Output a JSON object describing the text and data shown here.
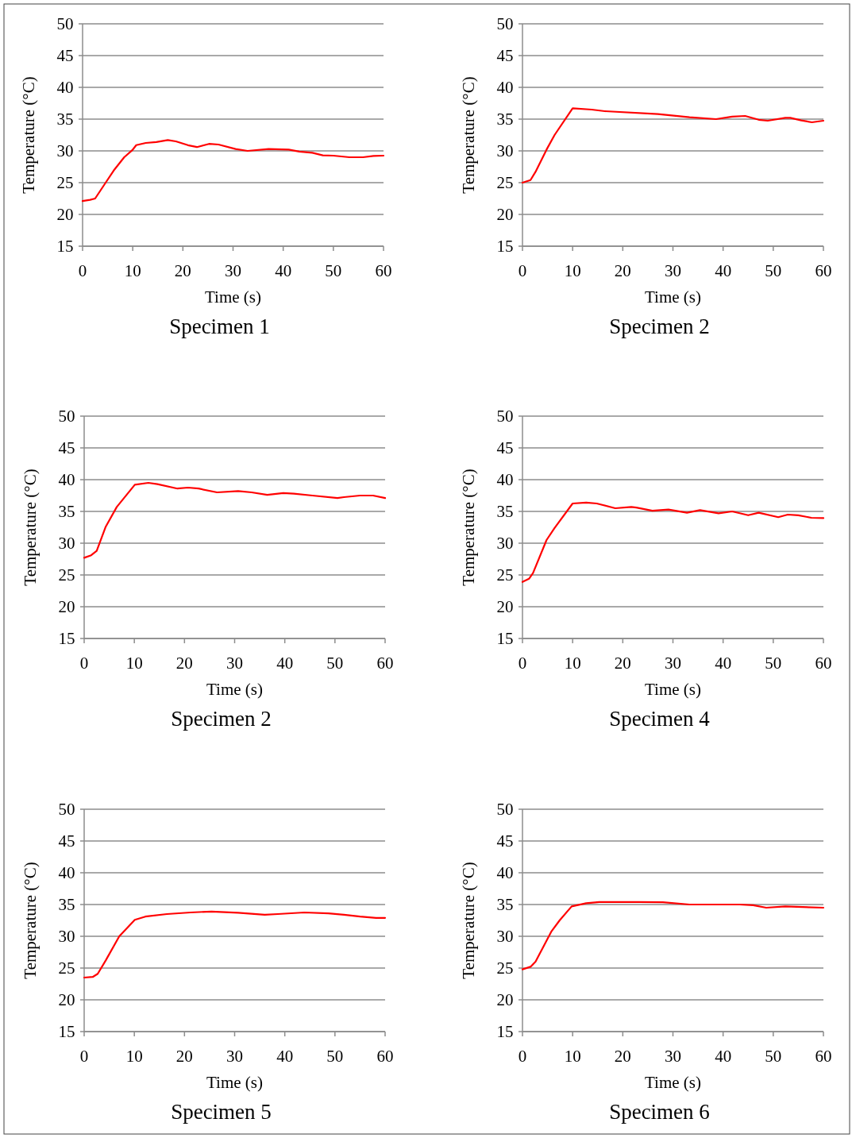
{
  "chart_data": [
    {
      "type": "line",
      "title": "Specimen 1",
      "xlabel": "Time (s)",
      "ylabel": "Temperature (°C)",
      "xlim": [
        0,
        60
      ],
      "ylim": [
        15,
        50
      ],
      "xticks": [
        0,
        10,
        20,
        30,
        40,
        50,
        60
      ],
      "yticks": [
        15,
        20,
        25,
        30,
        35,
        40,
        45,
        50
      ],
      "grid": "y",
      "x": [
        0,
        1.5,
        2.5,
        4.6,
        6.2,
        8.3,
        9.9,
        10.7,
        12.6,
        14.7,
        17,
        18.6,
        21,
        22.8,
        25.2,
        27.1,
        30.5,
        32.9,
        37.1,
        41.1,
        43.2,
        45.8,
        47.9,
        50,
        53.2,
        55.9,
        58,
        60
      ],
      "series": [
        {
          "color": "#ff0000",
          "values": [
            22.1,
            22.3,
            22.5,
            25,
            26.9,
            29,
            30.1,
            30.9,
            31.25,
            31.4,
            31.7,
            31.5,
            30.9,
            30.6,
            31.1,
            31,
            30.3,
            30,
            30.3,
            30.2,
            29.9,
            29.7,
            29.3,
            29.25,
            29,
            29,
            29.2,
            29.25
          ]
        }
      ]
    },
    {
      "type": "line",
      "title": "Specimen 2",
      "xlabel": "Time (s)",
      "ylabel": "Temperature (°C)",
      "xlim": [
        0,
        60
      ],
      "ylim": [
        15,
        50
      ],
      "xticks": [
        0,
        10,
        20,
        30,
        40,
        50,
        60
      ],
      "yticks": [
        15,
        20,
        25,
        30,
        35,
        40,
        45,
        50
      ],
      "grid": "y",
      "x": [
        0,
        1.6,
        2.6,
        4.8,
        6.4,
        10,
        13.8,
        16.4,
        27,
        33.3,
        38.6,
        41.8,
        44.4,
        47.1,
        48.9,
        52.4,
        53.4,
        55.6,
        57.7,
        60
      ],
      "series": [
        {
          "color": "#ff0000",
          "values": [
            25,
            25.4,
            26.7,
            30.2,
            32.5,
            36.7,
            36.5,
            36.25,
            35.8,
            35.3,
            35,
            35.4,
            35.5,
            34.9,
            34.75,
            35.2,
            35.2,
            34.8,
            34.5,
            34.75
          ]
        }
      ]
    },
    {
      "type": "line",
      "title": "Specimen 2",
      "xlabel": "Time (s)",
      "ylabel": "Temperature (°C)",
      "xlim": [
        0,
        60
      ],
      "ylim": [
        15,
        50
      ],
      "xticks": [
        0,
        10,
        20,
        30,
        40,
        50,
        60
      ],
      "yticks": [
        15,
        20,
        25,
        30,
        35,
        40,
        45,
        50
      ],
      "grid": "y",
      "x": [
        0,
        1.4,
        2.5,
        4.3,
        6.5,
        10.1,
        12.8,
        14.6,
        18.6,
        20.7,
        22.8,
        26.5,
        30.7,
        33.4,
        36.5,
        39.7,
        41.8,
        45.5,
        50.5,
        51.8,
        55,
        57.6,
        60
      ],
      "series": [
        {
          "color": "#ff0000",
          "values": [
            27.7,
            28.1,
            28.8,
            32.6,
            35.7,
            39.2,
            39.5,
            39.3,
            38.6,
            38.75,
            38.6,
            38,
            38.2,
            38,
            37.6,
            37.9,
            37.8,
            37.5,
            37.1,
            37.25,
            37.5,
            37.5,
            37.1
          ]
        }
      ]
    },
    {
      "type": "line",
      "title": "Specimen 4",
      "xlabel": "Time (s)",
      "ylabel": "Temperature (°C)",
      "xlim": [
        0,
        60
      ],
      "ylim": [
        15,
        50
      ],
      "xticks": [
        0,
        10,
        20,
        30,
        40,
        50,
        60
      ],
      "yticks": [
        15,
        20,
        25,
        30,
        35,
        40,
        45,
        50
      ],
      "grid": "y",
      "x": [
        0,
        1.3,
        2.1,
        4.8,
        6.4,
        10,
        12.7,
        14.8,
        18.5,
        21.7,
        22.7,
        25.9,
        29.1,
        32.8,
        35.4,
        39.1,
        41.8,
        45,
        47.1,
        51,
        52.9,
        55,
        57.6,
        60
      ],
      "series": [
        {
          "color": "#ff0000",
          "values": [
            23.9,
            24.4,
            25.3,
            30.5,
            32.4,
            36.25,
            36.4,
            36.25,
            35.5,
            35.7,
            35.6,
            35.1,
            35.3,
            34.8,
            35.2,
            34.7,
            35,
            34.4,
            34.8,
            34.1,
            34.5,
            34.4,
            34,
            33.95
          ]
        }
      ]
    },
    {
      "type": "line",
      "title": "Specimen 5",
      "xlabel": "Time (s)",
      "ylabel": "Temperature (°C)",
      "xlim": [
        0,
        60
      ],
      "ylim": [
        15,
        50
      ],
      "xticks": [
        0,
        10,
        20,
        30,
        40,
        50,
        60
      ],
      "yticks": [
        15,
        20,
        25,
        30,
        35,
        40,
        45,
        50
      ],
      "grid": "y",
      "x": [
        0,
        1.7,
        2.7,
        4.3,
        7,
        10.1,
        12.2,
        16.5,
        21.2,
        25.4,
        30.7,
        36,
        38.6,
        43.9,
        48.7,
        51.8,
        55,
        58.2,
        60
      ],
      "series": [
        {
          "color": "#ff0000",
          "values": [
            23.5,
            23.6,
            24.1,
            26.2,
            30,
            32.6,
            33.1,
            33.5,
            33.75,
            33.9,
            33.7,
            33.4,
            33.5,
            33.75,
            33.6,
            33.4,
            33.1,
            32.9,
            32.9
          ]
        }
      ]
    },
    {
      "type": "line",
      "title": "Specimen 6",
      "xlabel": "Time (s)",
      "ylabel": "Temperature (°C)",
      "xlim": [
        0,
        60
      ],
      "ylim": [
        15,
        50
      ],
      "xticks": [
        0,
        10,
        20,
        30,
        40,
        50,
        60
      ],
      "yticks": [
        15,
        20,
        25,
        30,
        35,
        40,
        45,
        50
      ],
      "grid": "y",
      "x": [
        0,
        1.6,
        2.6,
        5.8,
        7.4,
        9.8,
        12.7,
        15.3,
        23.2,
        28,
        33.3,
        43.3,
        46,
        48.6,
        52.4,
        60
      ],
      "series": [
        {
          "color": "#ff0000",
          "values": [
            24.8,
            25.2,
            26,
            30.8,
            32.5,
            34.7,
            35.2,
            35.4,
            35.4,
            35.35,
            35,
            35,
            34.9,
            34.5,
            34.7,
            34.5
          ]
        }
      ]
    }
  ]
}
